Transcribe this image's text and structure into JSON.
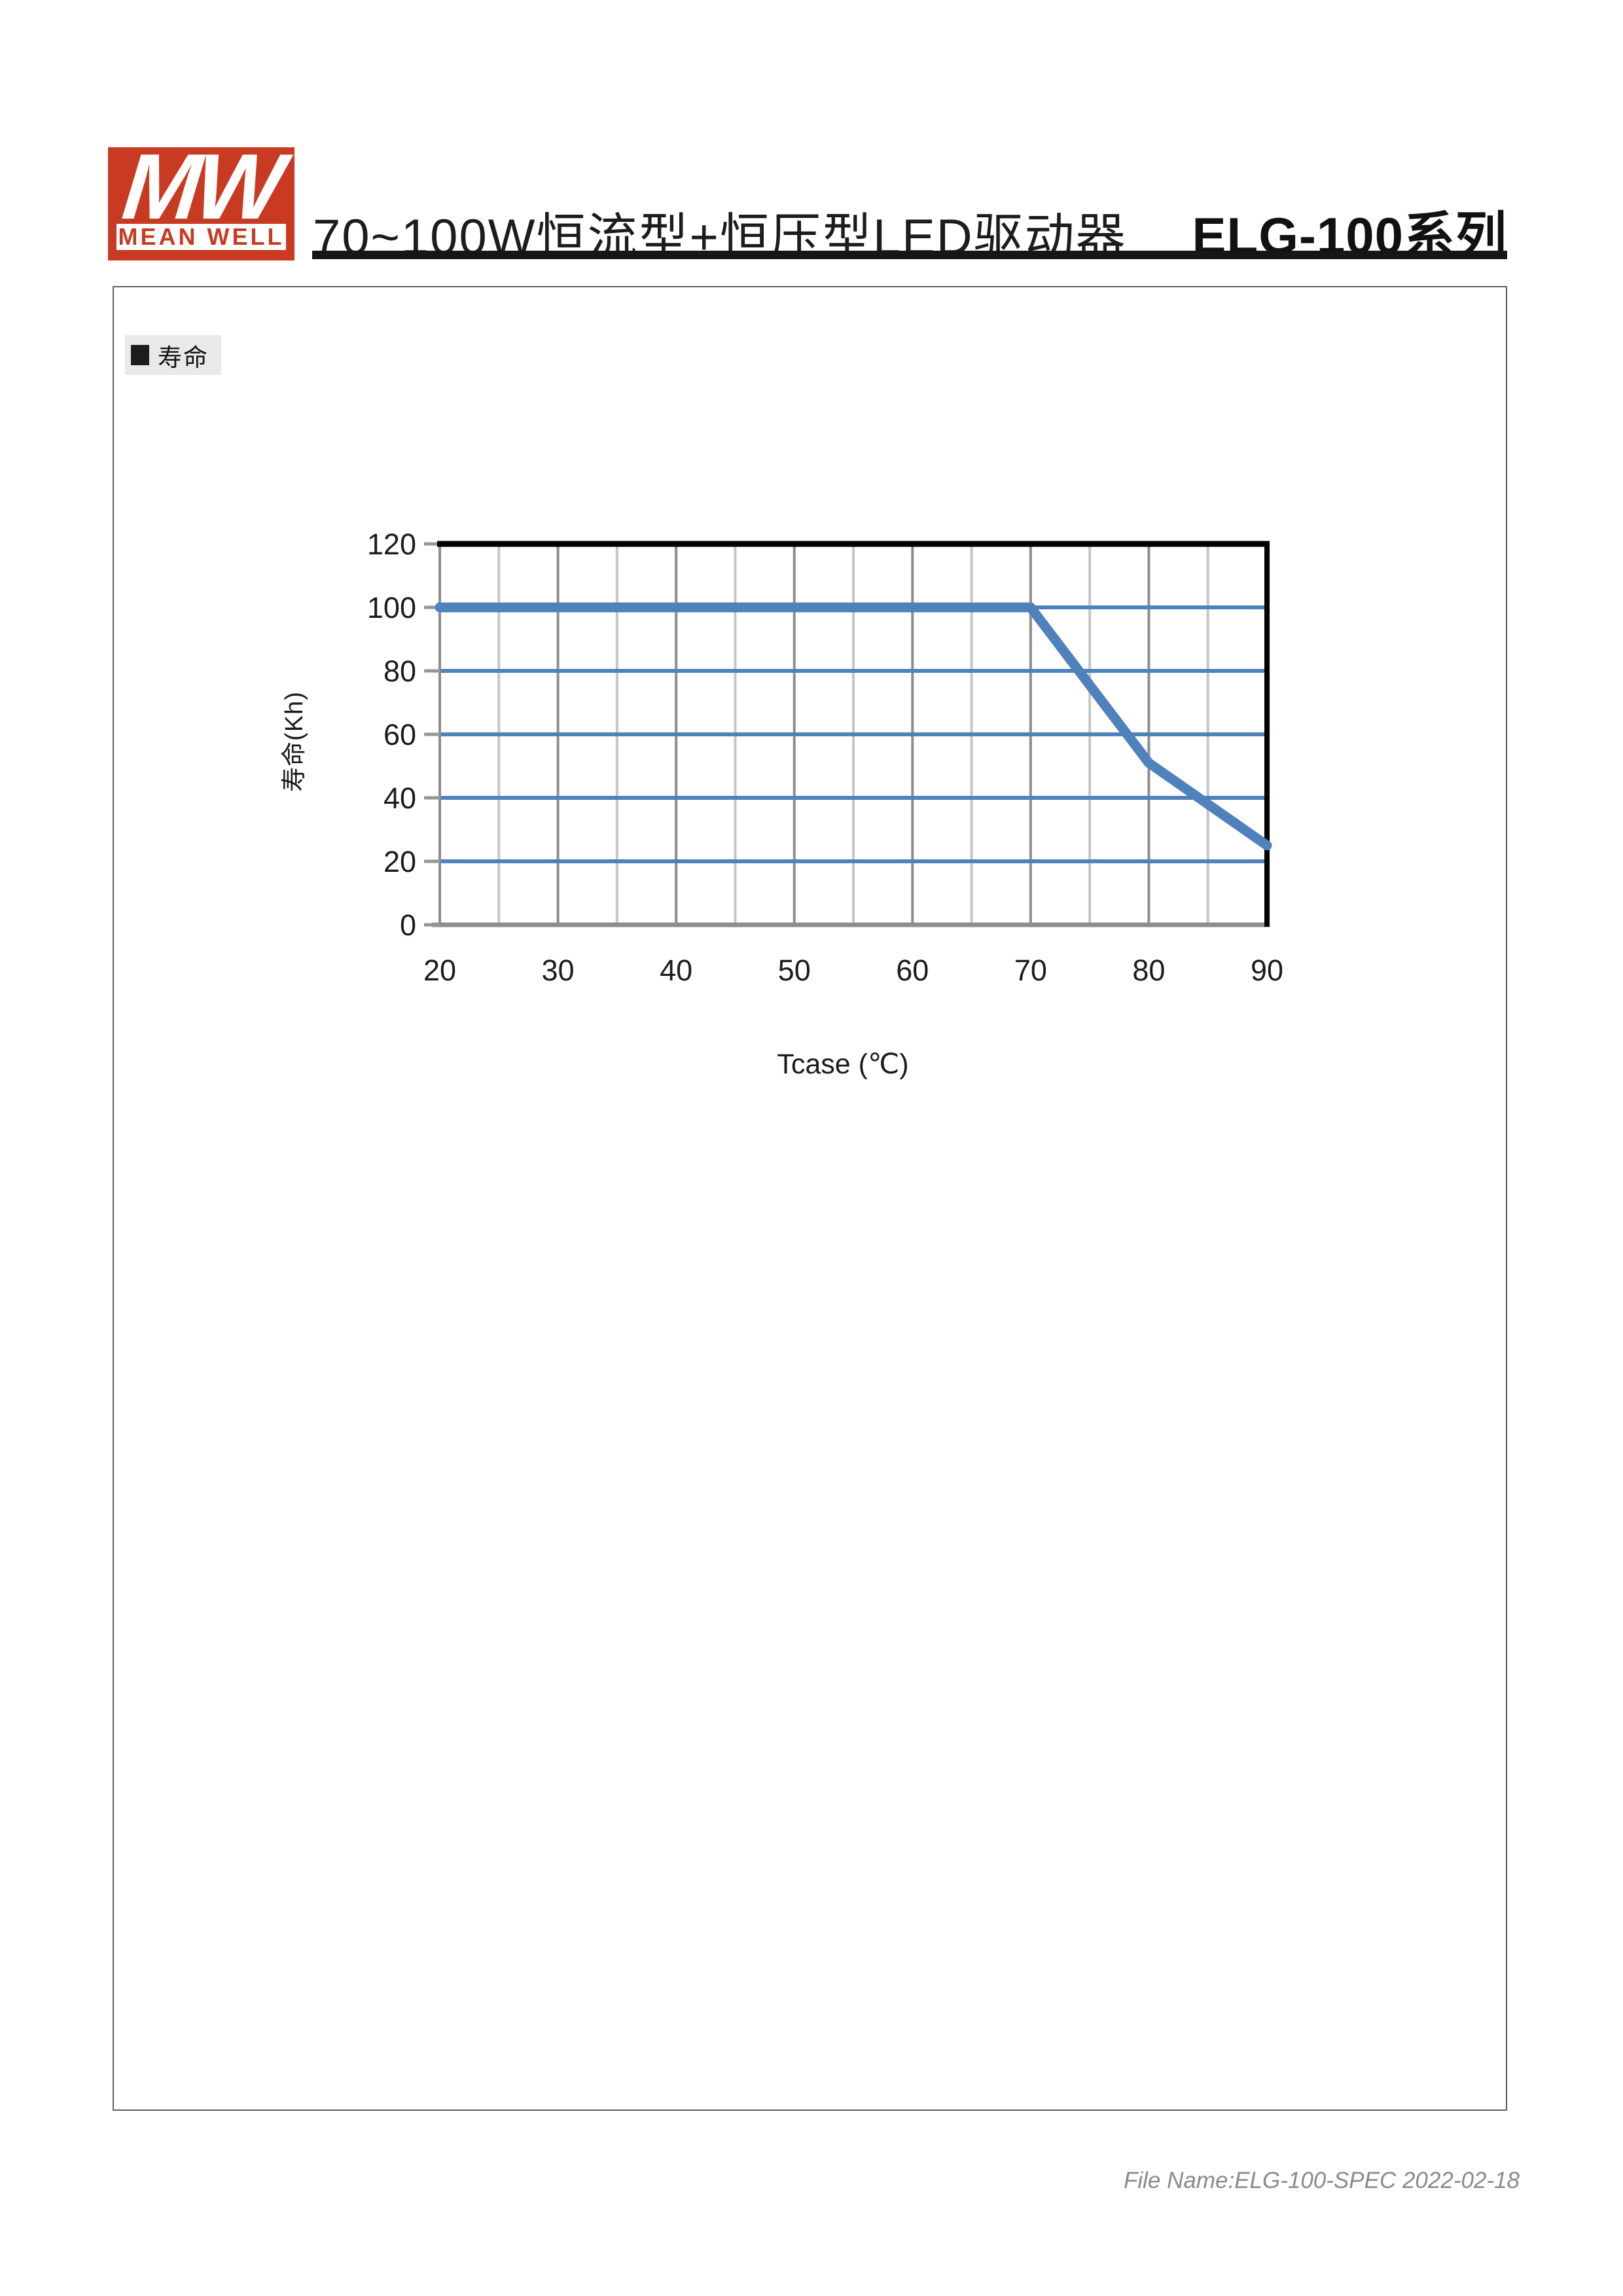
{
  "header": {
    "logo_mw": "MW",
    "logo_brand": "MEAN WELL",
    "logo_red": "#c93a22",
    "title": "70~100W恒流型+恒压型LED驱动器",
    "series": "ELG-100系列"
  },
  "section": {
    "label": "寿命"
  },
  "footer": {
    "text": "File Name:ELG-100-SPEC 2022-02-18"
  },
  "chart_data": {
    "type": "line",
    "title": "",
    "xlabel": "Tcase (℃)",
    "ylabel": "寿命(Kh)",
    "xlim": [
      20,
      90
    ],
    "ylim": [
      0,
      120
    ],
    "x_ticks": [
      20,
      30,
      40,
      50,
      60,
      70,
      80,
      90
    ],
    "x_minor_step": 5,
    "y_ticks": [
      0,
      20,
      40,
      60,
      80,
      100,
      120
    ],
    "grid": true,
    "legend_position": "none",
    "series": [
      {
        "name": "寿命",
        "x": [
          20,
          70,
          80,
          90
        ],
        "y": [
          100,
          100,
          51,
          25
        ]
      }
    ],
    "colors": {
      "line": "#4f81bd",
      "h_grid": "#4f81bd",
      "v_grid_major": "#8d8d8d",
      "v_grid_minor": "#c6c6c6",
      "axis": "#8d8d8d",
      "tick": "#969696",
      "border": "#000000",
      "tick_label": "#1b1b1b"
    }
  }
}
